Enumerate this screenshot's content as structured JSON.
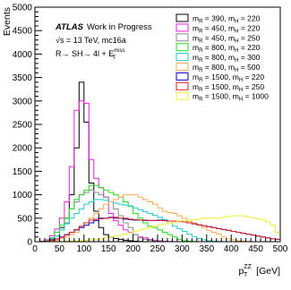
{
  "chart_data": {
    "type": "line",
    "style": "step-histogram",
    "ylabel": "Events",
    "xlabel": {
      "main": "p",
      "sub": "T",
      "sup": "ZZ",
      "unit": " [GeV]"
    },
    "xlim": [
      0,
      500
    ],
    "ylim": [
      0,
      5000
    ],
    "xticks": [
      0,
      50,
      100,
      150,
      200,
      250,
      300,
      350,
      400,
      450,
      500
    ],
    "yticks": [
      0,
      500,
      1000,
      1500,
      2000,
      2500,
      3000,
      3500,
      4000,
      4500,
      5000
    ],
    "bin_edges": [
      0,
      10,
      20,
      30,
      40,
      50,
      60,
      70,
      80,
      90,
      100,
      110,
      120,
      130,
      140,
      150,
      160,
      170,
      180,
      190,
      200,
      210,
      220,
      230,
      240,
      250,
      260,
      270,
      280,
      290,
      300,
      310,
      320,
      330,
      340,
      350,
      360,
      370,
      380,
      390,
      400,
      410,
      420,
      430,
      440,
      450,
      460,
      470,
      480,
      490,
      500
    ],
    "grid": false,
    "legend_position": "top-right",
    "annotations": {
      "atlas": "ATLAS",
      "atlas_suffix": "Work in Progress",
      "energy_sqrt": "√s",
      "energy_rest": " = 13 TeV, mc16a",
      "process_prefix": "R→ SH→ 4l + E",
      "process_sub": "T",
      "process_sup": "miss"
    },
    "series": [
      {
        "m_R": "390",
        "m_H": "220",
        "color": "#000000",
        "values": [
          0,
          0,
          10,
          40,
          200,
          300,
          500,
          1000,
          2000,
          3400,
          2550,
          1250,
          650,
          300,
          150,
          100,
          70,
          50,
          30,
          20,
          10,
          5,
          0,
          0,
          0,
          0,
          0,
          0,
          0,
          0,
          0,
          0,
          0,
          0,
          0,
          0,
          0,
          0,
          0,
          0,
          0,
          0,
          0,
          0,
          0,
          0,
          0,
          0,
          0,
          0
        ]
      },
      {
        "m_R": "450",
        "m_H": "220",
        "color": "#ee1fdc",
        "values": [
          0,
          10,
          40,
          130,
          270,
          500,
          850,
          1600,
          2800,
          3000,
          2950,
          1750,
          1350,
          1150,
          950,
          600,
          450,
          350,
          250,
          200,
          150,
          100,
          80,
          50,
          30,
          20,
          10,
          5,
          0,
          0,
          0,
          0,
          0,
          0,
          0,
          0,
          0,
          0,
          0,
          0,
          0,
          0,
          0,
          0,
          0,
          0,
          0,
          0,
          0,
          0
        ]
      },
      {
        "m_R": "450",
        "m_H": "250",
        "color": "#888888",
        "values": [
          0,
          5,
          20,
          80,
          120,
          250,
          400,
          700,
          850,
          1000,
          1050,
          1100,
          1050,
          1000,
          950,
          850,
          700,
          550,
          400,
          300,
          150,
          80,
          50,
          30,
          20,
          10,
          5,
          0,
          0,
          0,
          0,
          0,
          0,
          0,
          0,
          0,
          0,
          0,
          0,
          0,
          0,
          0,
          0,
          0,
          0,
          0,
          0,
          0,
          0,
          0
        ]
      },
      {
        "m_R": "800",
        "m_H": "220",
        "color": "#22dd22",
        "values": [
          0,
          5,
          20,
          80,
          200,
          350,
          500,
          700,
          900,
          1000,
          1100,
          1200,
          1200,
          1150,
          1100,
          1050,
          1000,
          950,
          850,
          750,
          600,
          500,
          400,
          330,
          300,
          250,
          200,
          150,
          100,
          50,
          20,
          10,
          5,
          0,
          0,
          0,
          0,
          0,
          0,
          0,
          0,
          0,
          0,
          0,
          0,
          0,
          0,
          0,
          0,
          0
        ]
      },
      {
        "m_R": "800",
        "m_H": "300",
        "color": "#22cccc",
        "values": [
          0,
          5,
          20,
          60,
          120,
          250,
          380,
          500,
          600,
          700,
          800,
          850,
          900,
          900,
          880,
          850,
          820,
          800,
          780,
          760,
          720,
          680,
          640,
          600,
          560,
          520,
          470,
          400,
          330,
          280,
          220,
          160,
          110,
          70,
          40,
          20,
          10,
          5,
          0,
          0,
          0,
          0,
          0,
          0,
          0,
          0,
          0,
          0,
          0,
          0
        ]
      },
      {
        "m_R": "800",
        "m_H": "500",
        "color": "#ffaa55",
        "values": [
          0,
          0,
          5,
          10,
          30,
          60,
          100,
          150,
          200,
          300,
          400,
          500,
          600,
          700,
          800,
          850,
          900,
          950,
          1000,
          1000,
          1000,
          950,
          900,
          850,
          800,
          720,
          650,
          620,
          600,
          550,
          500,
          430,
          400,
          350,
          300,
          240,
          200,
          160,
          100,
          60,
          40,
          20,
          10,
          5,
          0,
          0,
          0,
          0,
          0,
          0
        ]
      },
      {
        "m_R": "1500",
        "m_H": "220",
        "color": "#0000cc",
        "values": [
          0,
          5,
          10,
          30,
          60,
          100,
          150,
          200,
          250,
          300,
          350,
          400,
          450,
          500,
          500,
          520,
          500,
          500,
          480,
          470,
          460,
          460,
          450,
          450,
          450,
          460,
          450,
          440,
          440,
          430,
          420,
          400,
          380,
          360,
          340,
          320,
          300,
          280,
          260,
          240,
          220,
          200,
          180,
          160,
          140,
          120,
          100,
          80,
          60,
          50
        ]
      },
      {
        "m_R": "1500",
        "m_H": "250",
        "color": "#dd2222",
        "values": [
          0,
          5,
          10,
          30,
          55,
          90,
          140,
          200,
          260,
          330,
          400,
          460,
          480,
          490,
          500,
          510,
          520,
          500,
          500,
          480,
          470,
          460,
          460,
          450,
          450,
          450,
          445,
          440,
          440,
          430,
          420,
          400,
          380,
          360,
          340,
          320,
          300,
          280,
          260,
          240,
          220,
          200,
          180,
          160,
          140,
          120,
          100,
          80,
          60,
          50
        ]
      },
      {
        "m_R": "1500",
        "m_H": "1000",
        "color": "#eeee33",
        "values": [
          0,
          0,
          0,
          0,
          5,
          5,
          10,
          10,
          15,
          20,
          30,
          40,
          50,
          60,
          80,
          100,
          120,
          140,
          160,
          190,
          220,
          250,
          280,
          300,
          330,
          360,
          380,
          400,
          420,
          440,
          450,
          460,
          470,
          480,
          500,
          500,
          500,
          500,
          520,
          540,
          550,
          550,
          550,
          530,
          510,
          490,
          470,
          420,
          350,
          200
        ]
      }
    ]
  }
}
